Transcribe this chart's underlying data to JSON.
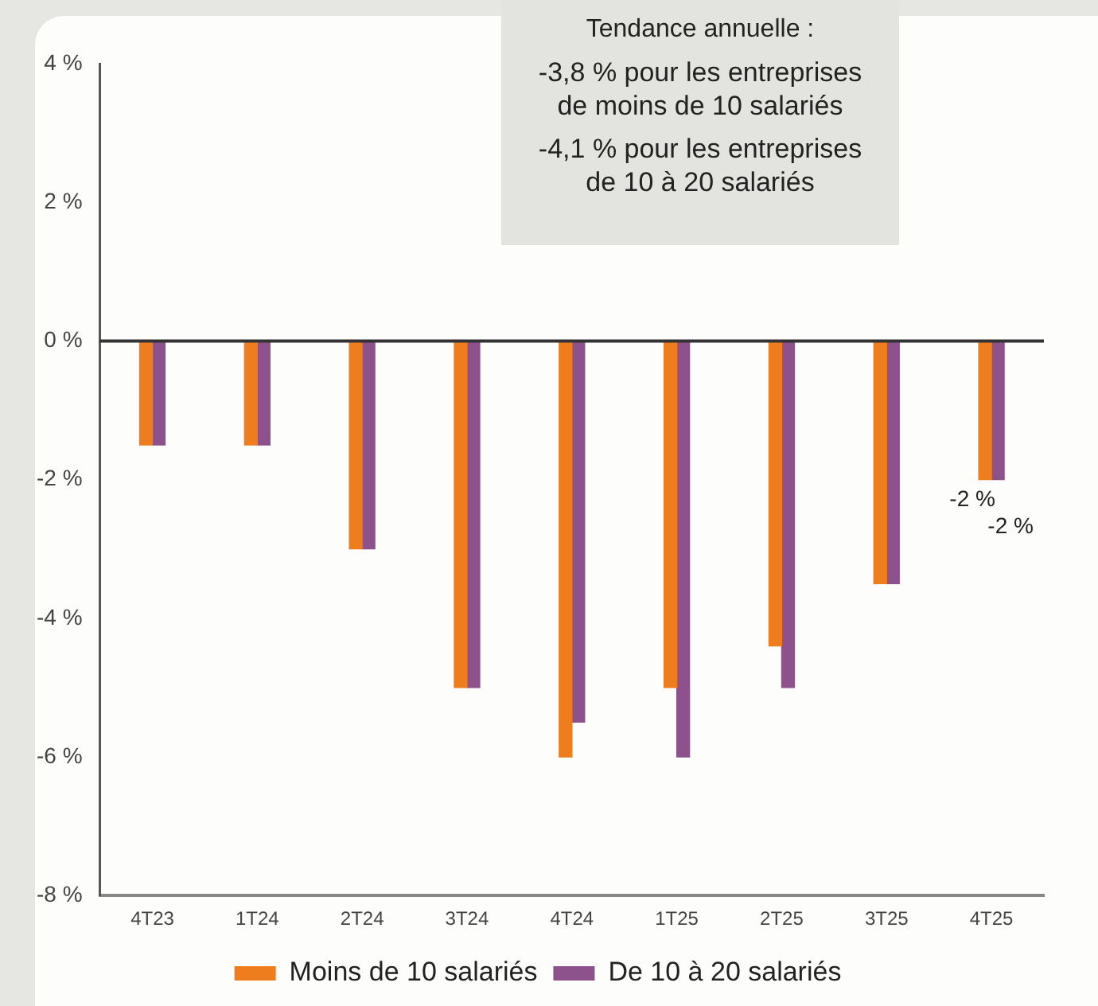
{
  "chart_data": {
    "type": "bar",
    "categories": [
      "4T23",
      "1T24",
      "2T24",
      "3T24",
      "4T24",
      "1T25",
      "2T25",
      "3T25",
      "4T25"
    ],
    "series": [
      {
        "name": "Moins de 10 salariés",
        "color": "#ee7d1e",
        "values": [
          -1.5,
          -1.5,
          -3,
          -5,
          -6,
          -5,
          -4.4,
          -3.5,
          -2
        ],
        "value_labels": [
          null,
          null,
          null,
          null,
          null,
          null,
          null,
          null,
          "-2 %"
        ]
      },
      {
        "name": "De 10 à 20 salariés",
        "color": "#8d518c",
        "values": [
          -1.5,
          -1.5,
          -3,
          -5,
          -5.5,
          -6,
          -5,
          -3.5,
          -2
        ],
        "value_labels": [
          null,
          null,
          null,
          null,
          null,
          null,
          null,
          null,
          "-2 %"
        ]
      }
    ],
    "ylim": [
      -8,
      4
    ],
    "yticks": [
      {
        "value": -8,
        "label": "-8 %"
      },
      {
        "value": -6,
        "label": "-6 %"
      },
      {
        "value": -4,
        "label": "-4 %"
      },
      {
        "value": -2,
        "label": "-2 %"
      },
      {
        "value": 0,
        "label": "0 %"
      },
      {
        "value": 2,
        "label": "2 %"
      },
      {
        "value": 4,
        "label": "4 %"
      }
    ],
    "grid": false,
    "ref_lines": [
      {
        "axis": "y",
        "value": 0,
        "color": "#333333"
      }
    ],
    "legend": "bottom",
    "annotations": [
      "Tendance annuelle :",
      "-3,8 % pour les entreprises de moins de 10 salariés",
      "-4,1 % pour les entreprises de 10 à 20 salariés"
    ]
  }
}
